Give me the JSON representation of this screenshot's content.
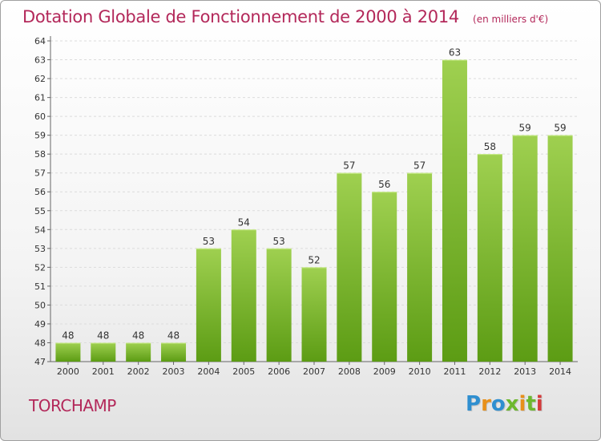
{
  "page": {
    "commune": "TORCHAMP",
    "logo_text": "Proxiti",
    "logo_colors": [
      "#2f8fd0",
      "#e8901a",
      "#2f8fd0",
      "#6db82e",
      "#e8901a",
      "#6db82e",
      "#d43b3b"
    ]
  },
  "chart_data": {
    "type": "bar",
    "title": "Dotation Globale de Fonctionnement de 2000 à 2014",
    "subtitle": "(en milliers d'€)",
    "xlabel": "",
    "ylabel": "",
    "categories": [
      "2000",
      "2001",
      "2002",
      "2003",
      "2004",
      "2005",
      "2006",
      "2007",
      "2008",
      "2009",
      "2010",
      "2011",
      "2012",
      "2013",
      "2014"
    ],
    "values": [
      48,
      48,
      48,
      48,
      53,
      54,
      53,
      52,
      57,
      56,
      57,
      63,
      58,
      59,
      59
    ],
    "ylim": [
      47,
      64
    ],
    "yticks": [
      47,
      48,
      49,
      50,
      51,
      52,
      53,
      54,
      55,
      56,
      57,
      58,
      59,
      60,
      61,
      62,
      63,
      64
    ],
    "grid": true,
    "legend": "none",
    "bar_color_top": "#9fd050",
    "bar_color_bottom": "#5c9c14",
    "title_color": "#b3285a"
  }
}
